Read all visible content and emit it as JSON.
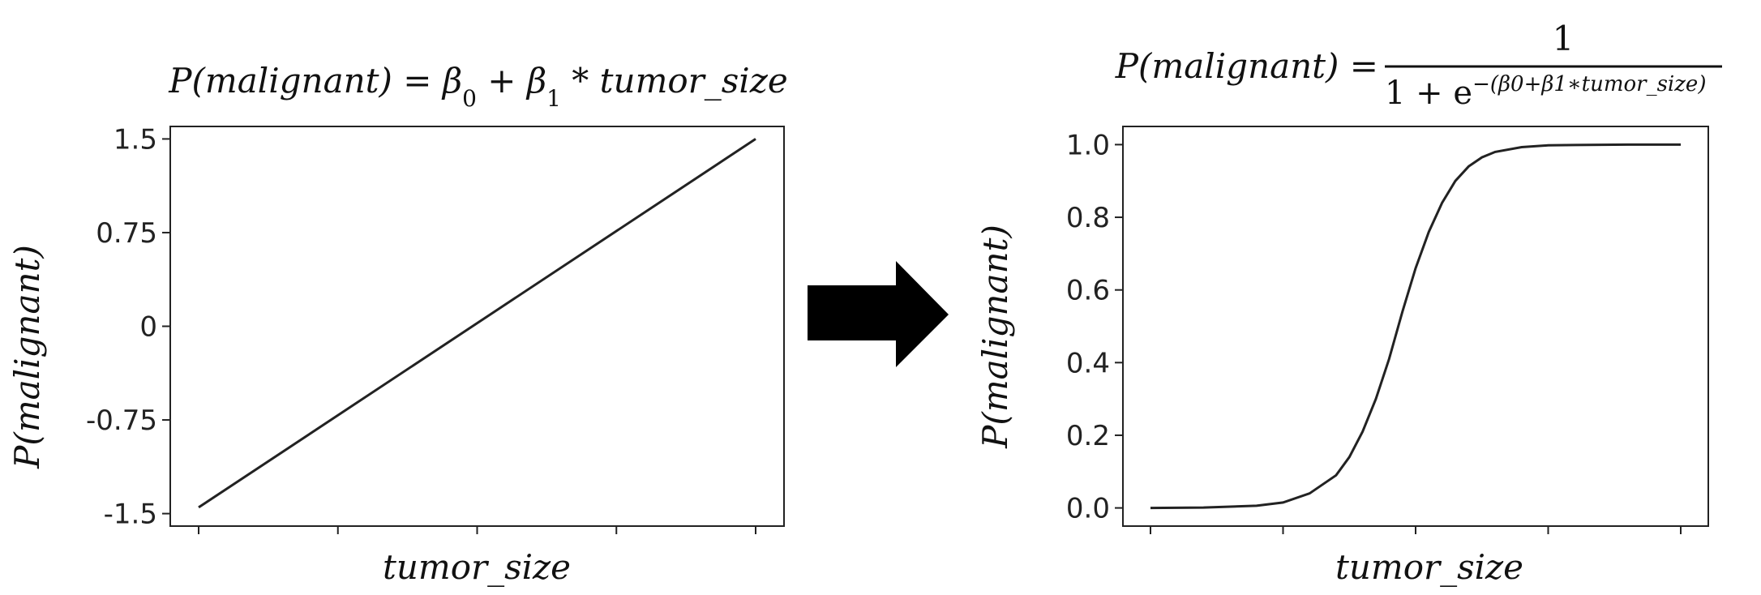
{
  "chart_data": [
    {
      "type": "line",
      "title": "P(malignant) = β₀ + β₁ * tumor_size",
      "title_parts": {
        "lhs": "P(malignant) = ",
        "beta": "β",
        "sub0": "0",
        "sub1": "1",
        "plus": " + ",
        "times_var": " * tumor_size"
      },
      "xlabel": "tumor_size",
      "ylabel": "P(malignant)",
      "ylim": [
        -1.6,
        1.6
      ],
      "yticks": [
        1.5,
        0.75,
        0,
        -0.75,
        -1.5
      ],
      "ytick_labels": [
        "1.5",
        "0.75",
        "0",
        "-0.75",
        "-1.5"
      ],
      "xticks": [
        0,
        1,
        2,
        3,
        4
      ],
      "xtick_labels": [
        "",
        "",
        "",
        "",
        ""
      ],
      "x": [
        0,
        4
      ],
      "y": [
        -1.45,
        1.5
      ]
    },
    {
      "type": "line",
      "title": "P(malignant) = 1 / (1 + e^-(β₀+β₁*tumor_size))",
      "title_parts": {
        "lhs": "P(malignant) = ",
        "numerator": "1",
        "denom_prefix": "1 + e",
        "exp_prefix": "−(β",
        "exp_sub0": "0",
        "exp_mid": "+β",
        "exp_sub1": "1",
        "exp_suffix": "∗tumor_size)"
      },
      "xlabel": "tumor_size",
      "ylabel": "P(malignant)",
      "ylim": [
        -0.05,
        1.05
      ],
      "yticks": [
        1.0,
        0.8,
        0.6,
        0.4,
        0.2,
        0.0
      ],
      "ytick_labels": [
        "1.0",
        "0.8",
        "0.6",
        "0.4",
        "0.2",
        "0.0"
      ],
      "xticks": [
        0,
        1,
        2,
        3,
        4
      ],
      "xtick_labels": [
        "",
        "",
        "",
        "",
        ""
      ],
      "x": [
        0,
        0.4,
        0.8,
        1.0,
        1.2,
        1.4,
        1.5,
        1.6,
        1.7,
        1.8,
        1.9,
        2.0,
        2.1,
        2.2,
        2.3,
        2.4,
        2.5,
        2.6,
        2.8,
        3.0,
        3.2,
        3.6,
        4.0
      ],
      "y": [
        0.0,
        0.001,
        0.006,
        0.015,
        0.04,
        0.09,
        0.14,
        0.21,
        0.3,
        0.41,
        0.54,
        0.66,
        0.76,
        0.84,
        0.9,
        0.94,
        0.965,
        0.98,
        0.993,
        0.998,
        0.999,
        1.0,
        1.0
      ]
    }
  ],
  "arrow": {
    "icon": "right-arrow-icon",
    "color": "#000000"
  }
}
